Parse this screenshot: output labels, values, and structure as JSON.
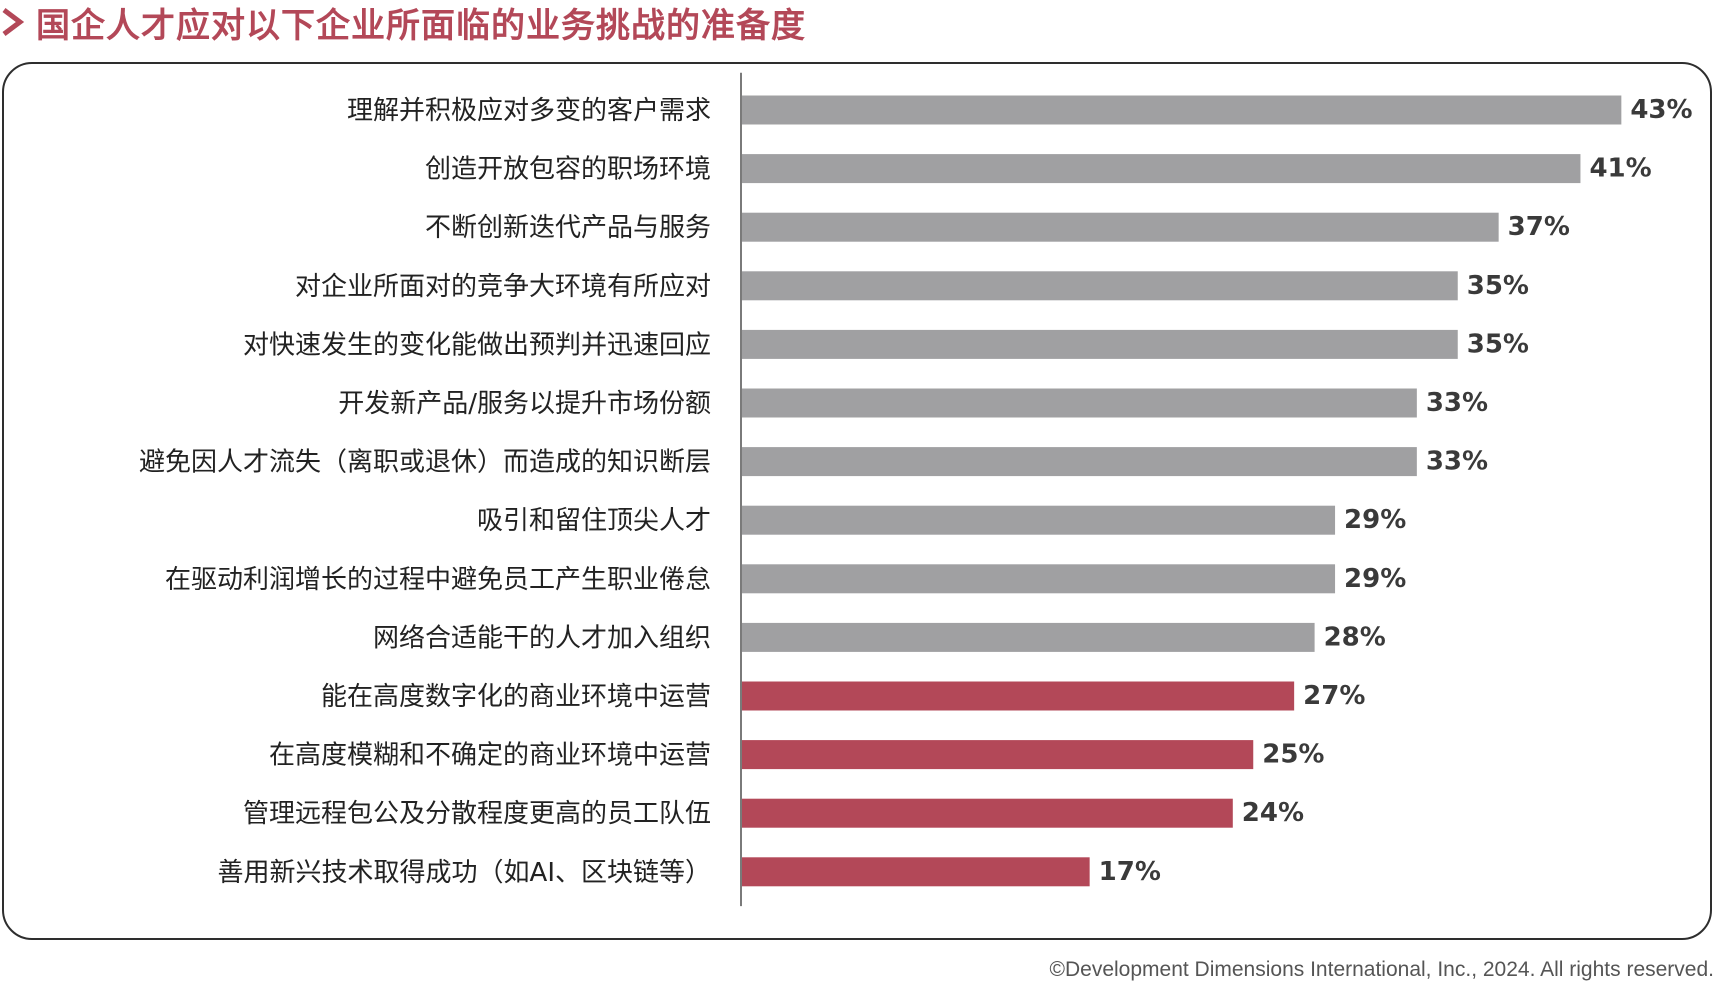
{
  "header": {
    "title": "国企人才应对以下企业所面临的业务挑战的准备度",
    "icon": "chevron-right-icon"
  },
  "colors": {
    "title": "#b34858",
    "gray_bar": "#a0a0a2",
    "red_bar": "#b34858",
    "axis": "#7a7a7a",
    "value_label": "#3a3a3a"
  },
  "chart_data": {
    "type": "bar",
    "orientation": "horizontal",
    "categories": [
      "理解并积极应对多变的客户需求",
      "创造开放包容的职场环境",
      "不断创新迭代产品与服务",
      "对企业所面对的竞争大环境有所应对",
      "对快速发生的变化能做出预判并迅速回应",
      "开发新产品/服务以提升市场份额",
      "避免因人才流失（离职或退休）而造成的知识断层",
      "吸引和留住顶尖人才",
      "在驱动利润增长的过程中避免员工产生职业倦怠",
      "网络合适能干的人才加入组织",
      "能在高度数字化的商业环境中运营",
      "在高度模糊和不确定的商业环境中运营",
      "管理远程包公及分散程度更高的员工队伍",
      "善用新兴技术取得成功（如AI、区块链等）"
    ],
    "values": [
      43,
      41,
      37,
      35,
      35,
      33,
      33,
      29,
      29,
      28,
      27,
      25,
      24,
      17
    ],
    "value_labels": [
      "43%",
      "41%",
      "37%",
      "35%",
      "35%",
      "33%",
      "33%",
      "29%",
      "29%",
      "28%",
      "27%",
      "25%",
      "24%",
      "17%"
    ],
    "highlight": [
      false,
      false,
      false,
      false,
      false,
      false,
      false,
      false,
      false,
      false,
      true,
      true,
      true,
      true
    ],
    "xlim": [
      0,
      45
    ],
    "grid": false,
    "legend": "none"
  },
  "footer": {
    "copyright": "©Development Dimensions International, Inc., 2024. All rights reserved."
  }
}
